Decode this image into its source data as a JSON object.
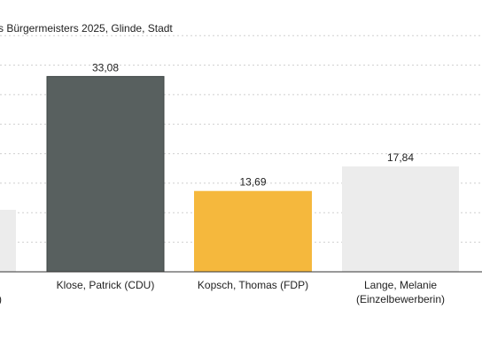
{
  "chart_data": {
    "type": "bar",
    "title": "s Bürgermeisters 2025, Glinde, Stadt",
    "categories": [
      [
        "",
        ")"
      ],
      [
        "Klose, Patrick (CDU)"
      ],
      [
        "Kopsch, Thomas (FDP)"
      ],
      [
        "Lange, Melanie",
        "(Einzelbewerberin)"
      ]
    ],
    "values": [
      10.5,
      33.08,
      13.69,
      17.84
    ],
    "value_labels": [
      "",
      "33,08",
      "13,69",
      "17,84"
    ],
    "colors": [
      "#ececec",
      "#58605f",
      "#f5b83d",
      "#ececec"
    ],
    "ylim": [
      0,
      40
    ],
    "grid": true,
    "legend": "none"
  }
}
